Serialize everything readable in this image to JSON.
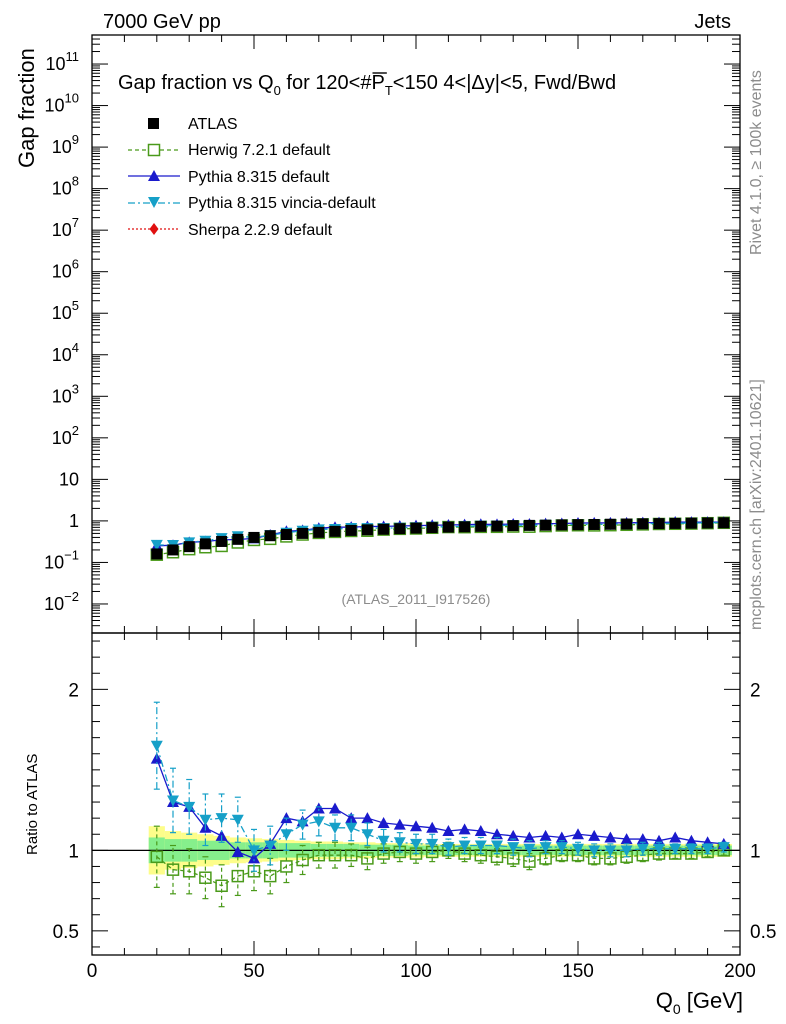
{
  "header": {
    "left": "7000 GeV pp",
    "right": "Jets",
    "side_top": "Rivet 4.1.0, ≥ 100k events",
    "side_bottom": "mcplots.cern.ch [arXiv:2401.10621]",
    "watermark": "(ATLAS_2011_I917526)"
  },
  "chart_data": {
    "type": "scatter",
    "title": "Gap fraction vs Q0 for 120<#PT<150  4<|Δy|<5, Fwd/Bwd",
    "title_parts": {
      "pre": "Gap fraction vs Q",
      "sub0": "0",
      "mid": " for 120<#",
      "over": "P",
      "sub1": "T",
      "post": "<150  4<|Δy|<5, Fwd/Bwd"
    },
    "xlabel": "Q0 [GeV]",
    "xlabel_parts": {
      "pre": "Q",
      "sub": "0",
      "post": " [GeV]"
    },
    "ylabel_main": "Gap fraction",
    "ylabel_ratio": "Ratio to ATLAS",
    "xlim": [
      0,
      200
    ],
    "ylim_main": [
      0.002,
      500000000000
    ],
    "ylim_ratio": [
      0.35,
      2.35
    ],
    "x_ticks": [
      "0",
      "50",
      "100",
      "150",
      "200"
    ],
    "y_ticks_main": [
      {
        "value": 0.01,
        "base": "10",
        "exp": "−2"
      },
      {
        "value": 0.1,
        "base": "10",
        "exp": "−1"
      },
      {
        "value": 1,
        "base": "1",
        "exp": ""
      },
      {
        "value": 10,
        "base": "10",
        "exp": ""
      },
      {
        "value": 100,
        "base": "10",
        "exp": "2"
      },
      {
        "value": 1000,
        "base": "10",
        "exp": "3"
      },
      {
        "value": 10000,
        "base": "10",
        "exp": "4"
      },
      {
        "value": 100000,
        "base": "10",
        "exp": "5"
      },
      {
        "value": 1000000,
        "base": "10",
        "exp": "6"
      },
      {
        "value": 10000000,
        "base": "10",
        "exp": "7"
      },
      {
        "value": 100000000,
        "base": "10",
        "exp": "8"
      },
      {
        "value": 1000000000,
        "base": "10",
        "exp": "9"
      },
      {
        "value": 10000000000,
        "base": "10",
        "exp": "10"
      },
      {
        "value": 100000000000,
        "base": "10",
        "exp": "11"
      }
    ],
    "y_ticks_ratio": [
      {
        "value": 0.5,
        "label": "0.5"
      },
      {
        "value": 1,
        "label": "1"
      },
      {
        "value": 2,
        "label": "2"
      }
    ],
    "x": [
      20,
      25,
      30,
      35,
      40,
      45,
      50,
      55,
      60,
      65,
      70,
      75,
      80,
      85,
      90,
      95,
      100,
      105,
      110,
      115,
      120,
      125,
      130,
      135,
      140,
      145,
      150,
      155,
      160,
      165,
      170,
      175,
      180,
      185,
      190,
      195
    ],
    "data": {
      "name": "ATLAS",
      "values": [
        0.16,
        0.2,
        0.24,
        0.28,
        0.32,
        0.36,
        0.4,
        0.44,
        0.47,
        0.5,
        0.53,
        0.56,
        0.59,
        0.61,
        0.63,
        0.65,
        0.67,
        0.69,
        0.71,
        0.72,
        0.74,
        0.75,
        0.77,
        0.78,
        0.79,
        0.8,
        0.81,
        0.82,
        0.83,
        0.84,
        0.85,
        0.86,
        0.87,
        0.88,
        0.89,
        0.9
      ],
      "band_inner": [
        0.08,
        0.07,
        0.07,
        0.06,
        0.06,
        0.05,
        0.05,
        0.05,
        0.045,
        0.045,
        0.04,
        0.04,
        0.04,
        0.035,
        0.035,
        0.035,
        0.03,
        0.03,
        0.03,
        0.03,
        0.03,
        0.03,
        0.03,
        0.03,
        0.03,
        0.03,
        0.03,
        0.03,
        0.03,
        0.03,
        0.03,
        0.03,
        0.03,
        0.03,
        0.03,
        0.03
      ],
      "band_outer": [
        0.15,
        0.12,
        0.11,
        0.1,
        0.09,
        0.08,
        0.075,
        0.07,
        0.065,
        0.06,
        0.055,
        0.055,
        0.05,
        0.05,
        0.045,
        0.045,
        0.045,
        0.04,
        0.04,
        0.04,
        0.04,
        0.04,
        0.04,
        0.04,
        0.04,
        0.04,
        0.04,
        0.04,
        0.04,
        0.04,
        0.04,
        0.04,
        0.04,
        0.04,
        0.04,
        0.04
      ]
    },
    "series": [
      {
        "name": "Herwig 7.2.1 default",
        "color": "#4a9a1a",
        "marker": "open-square",
        "dash": "4,3",
        "ratio": [
          0.96,
          0.88,
          0.87,
          0.83,
          0.78,
          0.84,
          0.87,
          0.84,
          0.9,
          0.94,
          0.97,
          0.97,
          0.97,
          0.95,
          0.98,
          0.99,
          0.98,
          0.99,
          1.0,
          0.98,
          0.97,
          0.96,
          0.95,
          0.93,
          0.95,
          0.97,
          0.97,
          0.95,
          0.95,
          0.96,
          0.97,
          0.98,
          0.98,
          0.98,
          0.99,
          1.0
        ],
        "ratio_err": [
          0.19,
          0.15,
          0.14,
          0.13,
          0.13,
          0.12,
          0.12,
          0.11,
          0.1,
          0.09,
          0.08,
          0.08,
          0.07,
          0.07,
          0.06,
          0.06,
          0.06,
          0.06,
          0.05,
          0.05,
          0.05,
          0.05,
          0.05,
          0.05,
          0.04,
          0.04,
          0.04,
          0.04,
          0.04,
          0.04,
          0.04,
          0.04,
          0.03,
          0.03,
          0.03,
          0.03
        ]
      },
      {
        "name": "Pythia 8.315 default",
        "color": "#1a1acc",
        "marker": "triangle-up",
        "dash": "",
        "ratio": [
          1.57,
          1.3,
          1.27,
          1.14,
          1.09,
          0.99,
          0.95,
          1.04,
          1.2,
          1.18,
          1.26,
          1.26,
          1.2,
          1.2,
          1.17,
          1.16,
          1.15,
          1.14,
          1.12,
          1.13,
          1.12,
          1.1,
          1.09,
          1.08,
          1.09,
          1.08,
          1.1,
          1.09,
          1.08,
          1.07,
          1.07,
          1.06,
          1.08,
          1.06,
          1.05,
          1.04
        ]
      },
      {
        "name": "Pythia 8.315 vincia-default",
        "color": "#16a0c8",
        "marker": "triangle-down",
        "dash": "7,3,2,3",
        "ratio": [
          1.65,
          1.31,
          1.27,
          1.19,
          1.2,
          1.19,
          1.0,
          1.03,
          1.1,
          1.16,
          1.18,
          1.14,
          1.14,
          1.1,
          1.06,
          1.05,
          1.04,
          1.04,
          1.02,
          1.03,
          1.03,
          1.03,
          1.02,
          1.01,
          1.02,
          1.02,
          1.01,
          1.0,
          1.0,
          1.0,
          1.01,
          1.01,
          1.01,
          1.01,
          1.01,
          1.02
        ],
        "ratio_err": [
          0.27,
          0.2,
          0.17,
          0.16,
          0.15,
          0.14,
          0.13,
          0.12,
          0.1,
          0.09,
          0.09,
          0.08,
          0.08,
          0.07,
          0.07,
          0.06,
          0.06,
          0.06,
          0.05,
          0.05,
          0.05,
          0.05,
          0.05,
          0.05,
          0.04,
          0.04,
          0.04,
          0.04,
          0.04,
          0.04,
          0.04,
          0.04,
          0.03,
          0.03,
          0.03,
          0.03
        ]
      },
      {
        "name": "Sherpa 2.2.9 default",
        "color": "#e01010",
        "marker": "diamond",
        "dash": "2,2",
        "ratio": []
      }
    ],
    "legend_position": "top-left",
    "legend": [
      {
        "label": "ATLAS"
      },
      {
        "label": "Herwig 7.2.1 default"
      },
      {
        "label": "Pythia 8.315 default"
      },
      {
        "label": "Pythia 8.315 vincia-default"
      },
      {
        "label": "Sherpa 2.2.9 default"
      }
    ],
    "colors": {
      "band_inner": "#86ef8c",
      "band_outer": "#fdfd8a",
      "data": "#000000"
    }
  }
}
